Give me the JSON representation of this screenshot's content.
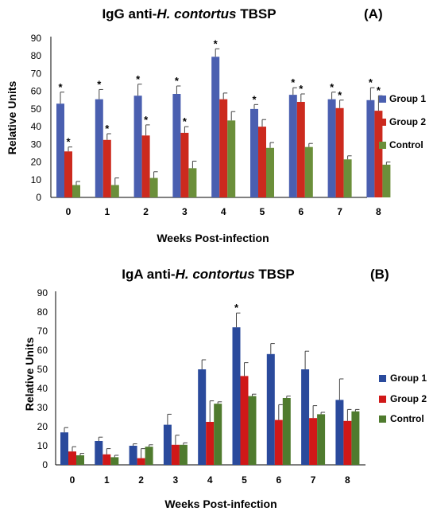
{
  "chart_data": [
    {
      "type": "bar",
      "title_prefix": "IgG anti-",
      "title_italic": "H. contortus",
      "title_suffix": " TBSP",
      "panel_label": "(A)",
      "xlabel": "Weeks Post-infection",
      "ylabel": "Relative Units",
      "ylim": [
        0,
        90
      ],
      "yticks": [
        "0",
        "10",
        "20",
        "30",
        "40",
        "50",
        "60",
        "70",
        "80",
        "90"
      ],
      "categories": [
        "0",
        "1",
        "2",
        "3",
        "4",
        "5",
        "6",
        "7",
        "8"
      ],
      "legend_position": "right",
      "series": [
        {
          "name": "Group 1",
          "color": "#4a5fb0",
          "values": [
            53,
            55.5,
            57.5,
            58.5,
            79.5,
            50,
            58,
            55.5,
            55
          ],
          "errors": [
            6.5,
            5.5,
            6.5,
            4.5,
            4.5,
            2.5,
            4,
            4,
            7
          ],
          "significant": [
            true,
            true,
            true,
            true,
            true,
            true,
            true,
            true,
            true
          ]
        },
        {
          "name": "Group 2",
          "color": "#cc2a1e",
          "values": [
            26,
            32.5,
            35,
            36.5,
            55.5,
            40,
            54,
            50.5,
            49
          ],
          "errors": [
            2.5,
            3.5,
            6,
            3.5,
            3.5,
            4,
            4.5,
            4.5,
            8.5
          ],
          "significant": [
            true,
            true,
            true,
            true,
            false,
            false,
            true,
            true,
            true
          ]
        },
        {
          "name": "Control",
          "color": "#6b8f3a",
          "values": [
            7,
            7,
            11,
            16.5,
            43.5,
            28,
            28.5,
            21.5,
            18.5
          ],
          "errors": [
            2,
            4,
            3.5,
            4,
            5,
            3,
            2,
            2,
            1.5
          ],
          "significant": [
            false,
            false,
            false,
            false,
            false,
            false,
            false,
            false,
            false
          ]
        }
      ],
      "legend_labels": [
        "Group 1",
        "Group 2",
        "Control"
      ]
    },
    {
      "type": "bar",
      "title_prefix": "IgA anti-",
      "title_italic": "H. contortus",
      "title_suffix": " TBSP",
      "panel_label": "(B)",
      "xlabel": "Weeks Post-infection",
      "ylabel": "Relative Units",
      "ylim": [
        0,
        90
      ],
      "yticks": [
        "0",
        "10",
        "20",
        "30",
        "40",
        "50",
        "60",
        "70",
        "80",
        "90"
      ],
      "categories": [
        "0",
        "1",
        "2",
        "3",
        "4",
        "5",
        "6",
        "7",
        "8"
      ],
      "legend_position": "right",
      "series": [
        {
          "name": "Group 1",
          "color": "#2a4a9c",
          "values": [
            17,
            12.5,
            10,
            21,
            50,
            72,
            58,
            50,
            34
          ],
          "errors": [
            2.5,
            2,
            1,
            5.5,
            5,
            7.5,
            5.5,
            9.5,
            11
          ],
          "significant": [
            false,
            false,
            false,
            false,
            false,
            true,
            false,
            false,
            false
          ]
        },
        {
          "name": "Group 2",
          "color": "#d01818",
          "values": [
            7,
            5.5,
            3.5,
            10.5,
            22.5,
            46.5,
            23.5,
            24.5,
            23
          ],
          "errors": [
            2.5,
            3,
            5,
            5,
            11,
            7,
            8,
            6.5,
            6
          ],
          "significant": [
            false,
            false,
            false,
            false,
            false,
            false,
            false,
            false,
            false
          ]
        },
        {
          "name": "Control",
          "color": "#4f7b2e",
          "values": [
            5,
            4,
            9.5,
            10.5,
            32,
            36,
            35,
            26.5,
            28
          ],
          "errors": [
            1,
            1,
            1,
            1,
            1,
            1,
            1,
            1,
            1
          ],
          "significant": [
            false,
            false,
            false,
            false,
            false,
            false,
            false,
            false,
            false
          ]
        }
      ],
      "legend_labels": [
        "Group 1",
        "Group 2",
        "Control"
      ]
    }
  ]
}
